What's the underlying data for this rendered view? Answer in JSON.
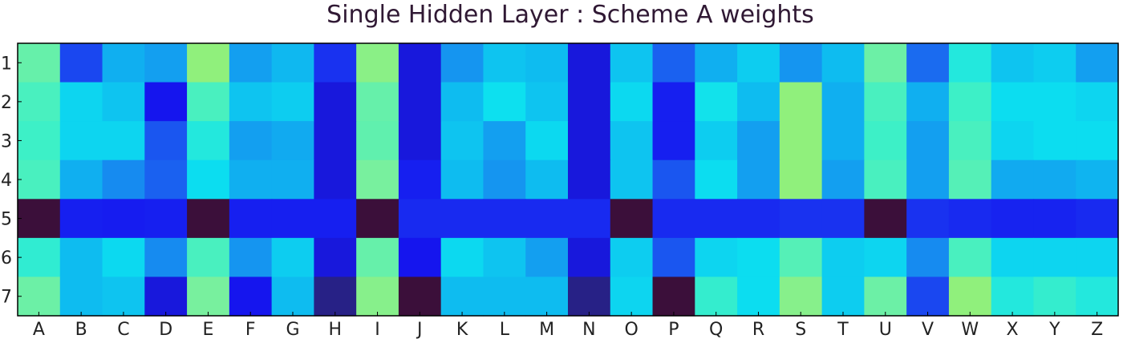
{
  "chart_data": {
    "type": "heatmap",
    "title": "Single Hidden Layer : Scheme A weights",
    "x_labels": [
      "A",
      "B",
      "C",
      "D",
      "E",
      "F",
      "G",
      "H",
      "I",
      "J",
      "K",
      "L",
      "M",
      "N",
      "O",
      "P",
      "Q",
      "R",
      "S",
      "T",
      "U",
      "V",
      "W",
      "X",
      "Y",
      "Z"
    ],
    "y_labels": [
      "1",
      "2",
      "3",
      "4",
      "5",
      "6",
      "7"
    ],
    "colorscale": [
      "#3b0f3a",
      "#25238e",
      "#1515f0",
      "#1a3ef0",
      "#1a78f0",
      "#0fb2f0",
      "#0ce0f0",
      "#3cf0c8",
      "#7df09a",
      "#a0f064"
    ],
    "values": [
      [
        0.85,
        0.35,
        0.55,
        0.52,
        0.95,
        0.52,
        0.57,
        0.3,
        0.93,
        0.2,
        0.5,
        0.6,
        0.58,
        0.2,
        0.6,
        0.4,
        0.55,
        0.62,
        0.5,
        0.58,
        0.86,
        0.42,
        0.72,
        0.6,
        0.62,
        0.52
      ],
      [
        0.8,
        0.64,
        0.6,
        0.22,
        0.8,
        0.6,
        0.62,
        0.2,
        0.85,
        0.2,
        0.58,
        0.67,
        0.6,
        0.2,
        0.65,
        0.25,
        0.68,
        0.58,
        0.95,
        0.55,
        0.8,
        0.55,
        0.78,
        0.66,
        0.66,
        0.64
      ],
      [
        0.78,
        0.64,
        0.64,
        0.38,
        0.72,
        0.52,
        0.54,
        0.2,
        0.84,
        0.2,
        0.6,
        0.52,
        0.65,
        0.2,
        0.6,
        0.25,
        0.62,
        0.52,
        0.95,
        0.55,
        0.78,
        0.52,
        0.8,
        0.64,
        0.66,
        0.66
      ],
      [
        0.8,
        0.55,
        0.48,
        0.4,
        0.66,
        0.55,
        0.55,
        0.2,
        0.88,
        0.25,
        0.58,
        0.5,
        0.58,
        0.2,
        0.6,
        0.38,
        0.66,
        0.52,
        0.95,
        0.52,
        0.8,
        0.52,
        0.82,
        0.54,
        0.54,
        0.56
      ],
      [
        0.0,
        0.25,
        0.24,
        0.25,
        0.0,
        0.25,
        0.25,
        0.25,
        0.0,
        0.28,
        0.28,
        0.28,
        0.28,
        0.28,
        0.0,
        0.28,
        0.28,
        0.28,
        0.3,
        0.3,
        0.0,
        0.3,
        0.28,
        0.26,
        0.26,
        0.28
      ],
      [
        0.75,
        0.58,
        0.65,
        0.48,
        0.8,
        0.5,
        0.62,
        0.2,
        0.85,
        0.22,
        0.65,
        0.6,
        0.52,
        0.2,
        0.62,
        0.38,
        0.64,
        0.66,
        0.82,
        0.62,
        0.64,
        0.48,
        0.8,
        0.64,
        0.64,
        0.64
      ],
      [
        0.86,
        0.58,
        0.6,
        0.2,
        0.88,
        0.22,
        0.58,
        0.1,
        0.92,
        0.0,
        0.58,
        0.58,
        0.58,
        0.1,
        0.64,
        0.0,
        0.76,
        0.66,
        0.92,
        0.62,
        0.86,
        0.35,
        0.95,
        0.72,
        0.76,
        0.72
      ]
    ]
  }
}
